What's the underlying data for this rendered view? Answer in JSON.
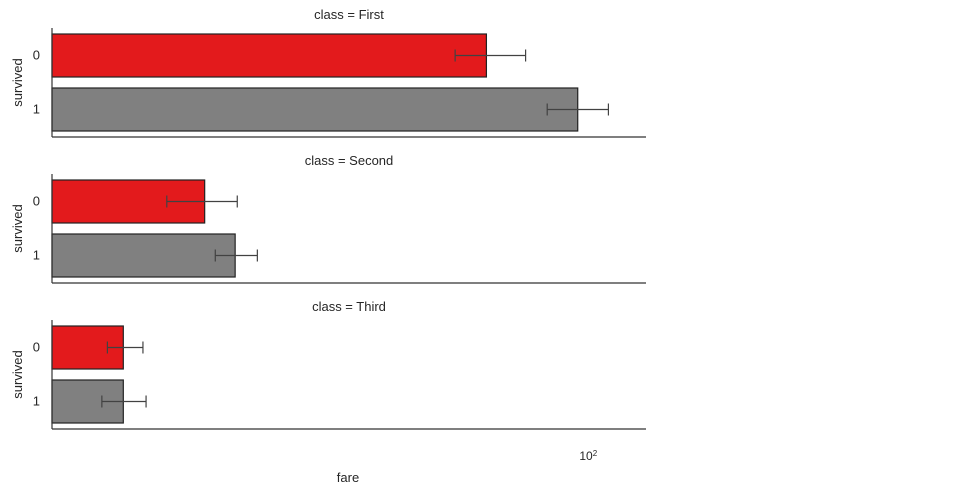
{
  "chart_data": {
    "type": "bar",
    "orientation": "horizontal",
    "layout": "faceted (3 rows)",
    "x_scale": "log",
    "xlabel": "fare",
    "ylabel": "survived",
    "x_tick_labels": [
      {
        "base": "10",
        "exp": "2",
        "value": 100
      }
    ],
    "categories": [
      "0",
      "1"
    ],
    "colors": {
      "0": "#E31A1C",
      "1": "#808080"
    },
    "grid": false,
    "legend": "none",
    "facets": [
      {
        "title": "class = First",
        "bars": [
          {
            "survived": "0",
            "value": 64.7,
            "ci": [
              56.6,
              76.5
            ]
          },
          {
            "survived": "1",
            "value": 95.6,
            "ci": [
              83.9,
              109.0
            ]
          }
        ]
      },
      {
        "title": "class = Second",
        "bars": [
          {
            "survived": "0",
            "value": 19.4,
            "ci": [
              16.5,
              22.3
            ]
          },
          {
            "survived": "1",
            "value": 22.1,
            "ci": [
              20.3,
              24.3
            ]
          }
        ]
      },
      {
        "title": "class = Third",
        "bars": [
          {
            "survived": "0",
            "value": 13.7,
            "ci": [
              12.8,
              14.9
            ]
          },
          {
            "survived": "1",
            "value": 13.7,
            "ci": [
              12.5,
              15.1
            ]
          }
        ]
      }
    ]
  }
}
